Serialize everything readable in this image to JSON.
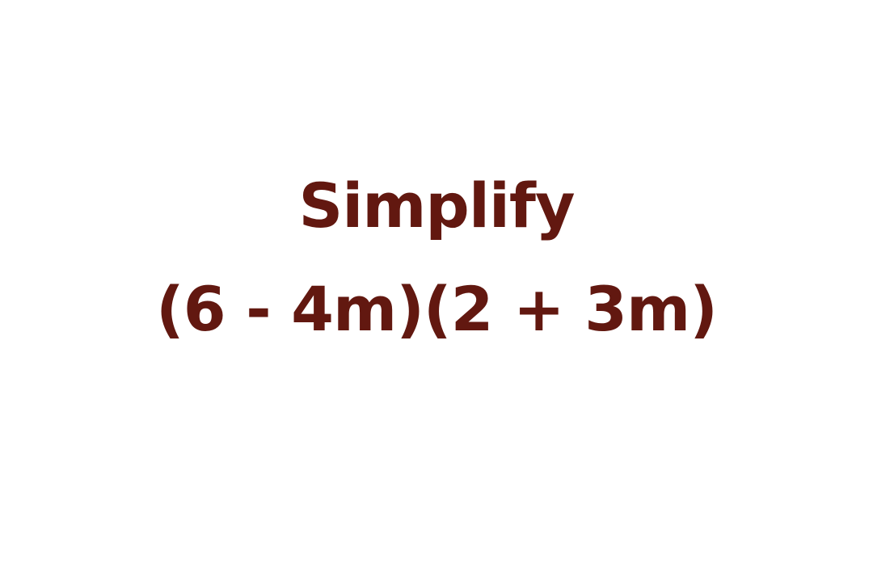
{
  "slide": {
    "heading": "Simplify",
    "expression": "(6 - 4m)(2 + 3m)",
    "text_color": "#621810",
    "background_color": "#ffffff"
  }
}
